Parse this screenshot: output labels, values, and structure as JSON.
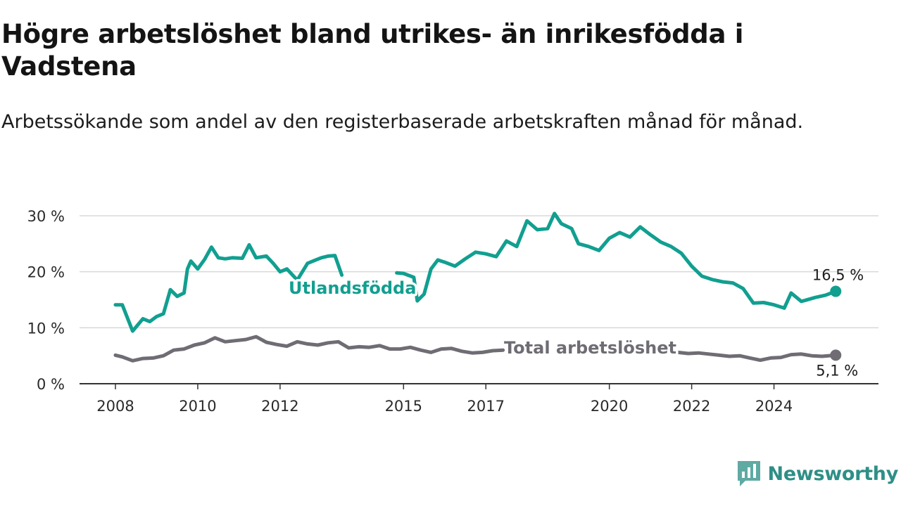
{
  "title": "Högre arbetslöshet bland utrikes- än inrikesfödda i Vadstena",
  "subtitle": "Arbetssökande som andel av den registerbaserade arbetskraften månad för månad.",
  "brand": {
    "name": "Newsworthy",
    "icon": "newsworthy-logo-icon"
  },
  "colors": {
    "foreign_born": "#119f90",
    "total": "#6f6c74",
    "grid": "#d8d8d8",
    "axis": "#333333"
  },
  "chart_data": {
    "type": "line",
    "title": "Högre arbetslöshet bland utrikes- än inrikesfödda i Vadstena",
    "subtitle": "Arbetssökande som andel av den registerbaserade arbetskraften månad för månad.",
    "xlabel": "",
    "ylabel": "",
    "ylim": [
      0,
      30
    ],
    "xlim": [
      "2008-01",
      "2025-09"
    ],
    "grid": "horizontal",
    "y_ticks": [
      0,
      10,
      20,
      30
    ],
    "y_tick_labels": [
      "0 %",
      "10 %",
      "20 %",
      "30 %"
    ],
    "x_ticks": [
      "2008",
      "2010",
      "2012",
      "2015",
      "2017",
      "2020",
      "2022",
      "2024"
    ],
    "series": [
      {
        "name": "Utlandsfödda",
        "end_label": "16,5 %",
        "points": [
          [
            "2008-01",
            14.1
          ],
          [
            "2008-03",
            14.1
          ],
          [
            "2008-06",
            9.4
          ],
          [
            "2008-09",
            11.6
          ],
          [
            "2008-11",
            11.1
          ],
          [
            "2009-01",
            12.0
          ],
          [
            "2009-03",
            12.5
          ],
          [
            "2009-05",
            16.8
          ],
          [
            "2009-07",
            15.6
          ],
          [
            "2009-09",
            16.2
          ],
          [
            "2009-10",
            20.5
          ],
          [
            "2009-11",
            21.9
          ],
          [
            "2010-01",
            20.5
          ],
          [
            "2010-03",
            22.2
          ],
          [
            "2010-05",
            24.4
          ],
          [
            "2010-07",
            22.5
          ],
          [
            "2010-09",
            22.3
          ],
          [
            "2010-11",
            22.5
          ],
          [
            "2011-02",
            22.4
          ],
          [
            "2011-04",
            24.8
          ],
          [
            "2011-06",
            22.5
          ],
          [
            "2011-09",
            22.8
          ],
          [
            "2011-11",
            21.5
          ],
          [
            "2012-01",
            20.0
          ],
          [
            "2012-03",
            20.5
          ],
          [
            "2012-06",
            18.5
          ],
          [
            "2012-09",
            21.5
          ],
          [
            "2012-11",
            22.0
          ],
          [
            "2013-01",
            22.5
          ],
          [
            "2013-03",
            22.8
          ],
          [
            "2013-05",
            22.9
          ],
          [
            "2013-07",
            19.4
          ],
          null,
          [
            "2014-11",
            19.8
          ],
          [
            "2015-01",
            19.7
          ],
          [
            "2015-04",
            19.0
          ],
          [
            "2015-05",
            14.8
          ],
          [
            "2015-07",
            16.0
          ],
          [
            "2015-09",
            20.5
          ],
          [
            "2015-11",
            22.1
          ],
          [
            "2016-01",
            21.7
          ],
          [
            "2016-04",
            21.0
          ],
          [
            "2016-07",
            22.3
          ],
          [
            "2016-10",
            23.5
          ],
          [
            "2017-01",
            23.2
          ],
          [
            "2017-04",
            22.7
          ],
          [
            "2017-07",
            25.5
          ],
          [
            "2017-10",
            24.5
          ],
          [
            "2018-01",
            29.1
          ],
          [
            "2018-04",
            27.5
          ],
          [
            "2018-07",
            27.7
          ],
          [
            "2018-09",
            30.4
          ],
          [
            "2018-11",
            28.6
          ],
          [
            "2019-02",
            27.7
          ],
          [
            "2019-04",
            25.0
          ],
          [
            "2019-07",
            24.5
          ],
          [
            "2019-10",
            23.8
          ],
          [
            "2020-01",
            26.0
          ],
          [
            "2020-04",
            27.0
          ],
          [
            "2020-07",
            26.2
          ],
          [
            "2020-10",
            28.0
          ],
          [
            "2021-01",
            26.6
          ],
          [
            "2021-04",
            25.3
          ],
          [
            "2021-07",
            24.5
          ],
          [
            "2021-10",
            23.3
          ],
          [
            "2022-01",
            21.0
          ],
          [
            "2022-04",
            19.2
          ],
          [
            "2022-07",
            18.6
          ],
          [
            "2022-10",
            18.2
          ],
          [
            "2023-01",
            18.0
          ],
          [
            "2023-04",
            17.0
          ],
          [
            "2023-07",
            14.4
          ],
          [
            "2023-10",
            14.5
          ],
          [
            "2024-01",
            14.1
          ],
          [
            "2024-04",
            13.5
          ],
          [
            "2024-06",
            16.2
          ],
          [
            "2024-09",
            14.7
          ],
          [
            "2025-01",
            15.4
          ],
          [
            "2025-04",
            15.8
          ],
          [
            "2025-07",
            16.5
          ]
        ]
      },
      {
        "name": "Total arbetslöshet",
        "end_label": "5,1 %",
        "points": [
          [
            "2008-01",
            5.1
          ],
          [
            "2008-03",
            4.8
          ],
          [
            "2008-06",
            4.1
          ],
          [
            "2008-09",
            4.5
          ],
          [
            "2008-12",
            4.6
          ],
          [
            "2009-03",
            5.0
          ],
          [
            "2009-06",
            6.0
          ],
          [
            "2009-09",
            6.2
          ],
          [
            "2009-12",
            6.9
          ],
          [
            "2010-03",
            7.3
          ],
          [
            "2010-06",
            8.2
          ],
          [
            "2010-09",
            7.5
          ],
          [
            "2010-12",
            7.7
          ],
          [
            "2011-03",
            7.9
          ],
          [
            "2011-06",
            8.4
          ],
          [
            "2011-09",
            7.4
          ],
          [
            "2011-12",
            7.0
          ],
          [
            "2012-03",
            6.7
          ],
          [
            "2012-06",
            7.5
          ],
          [
            "2012-09",
            7.1
          ],
          [
            "2012-12",
            6.9
          ],
          [
            "2013-03",
            7.3
          ],
          [
            "2013-06",
            7.5
          ],
          [
            "2013-09",
            6.4
          ],
          [
            "2013-12",
            6.6
          ],
          [
            "2014-03",
            6.5
          ],
          [
            "2014-06",
            6.8
          ],
          [
            "2014-09",
            6.2
          ],
          [
            "2014-12",
            6.2
          ],
          [
            "2015-03",
            6.5
          ],
          [
            "2015-06",
            6.0
          ],
          [
            "2015-09",
            5.6
          ],
          [
            "2015-12",
            6.2
          ],
          [
            "2016-03",
            6.3
          ],
          [
            "2016-06",
            5.8
          ],
          [
            "2016-09",
            5.5
          ],
          [
            "2016-12",
            5.6
          ],
          [
            "2017-03",
            5.9
          ],
          [
            "2017-06",
            6.0
          ],
          null,
          [
            "2021-09",
            5.6
          ],
          [
            "2021-12",
            5.4
          ],
          [
            "2022-03",
            5.5
          ],
          [
            "2022-06",
            5.3
          ],
          [
            "2022-09",
            5.1
          ],
          [
            "2022-12",
            4.9
          ],
          [
            "2023-03",
            5.0
          ],
          [
            "2023-06",
            4.6
          ],
          [
            "2023-09",
            4.2
          ],
          [
            "2023-12",
            4.6
          ],
          [
            "2024-03",
            4.7
          ],
          [
            "2024-06",
            5.2
          ],
          [
            "2024-09",
            5.3
          ],
          [
            "2024-12",
            5.0
          ],
          [
            "2025-03",
            4.9
          ],
          [
            "2025-07",
            5.1
          ]
        ]
      }
    ]
  }
}
